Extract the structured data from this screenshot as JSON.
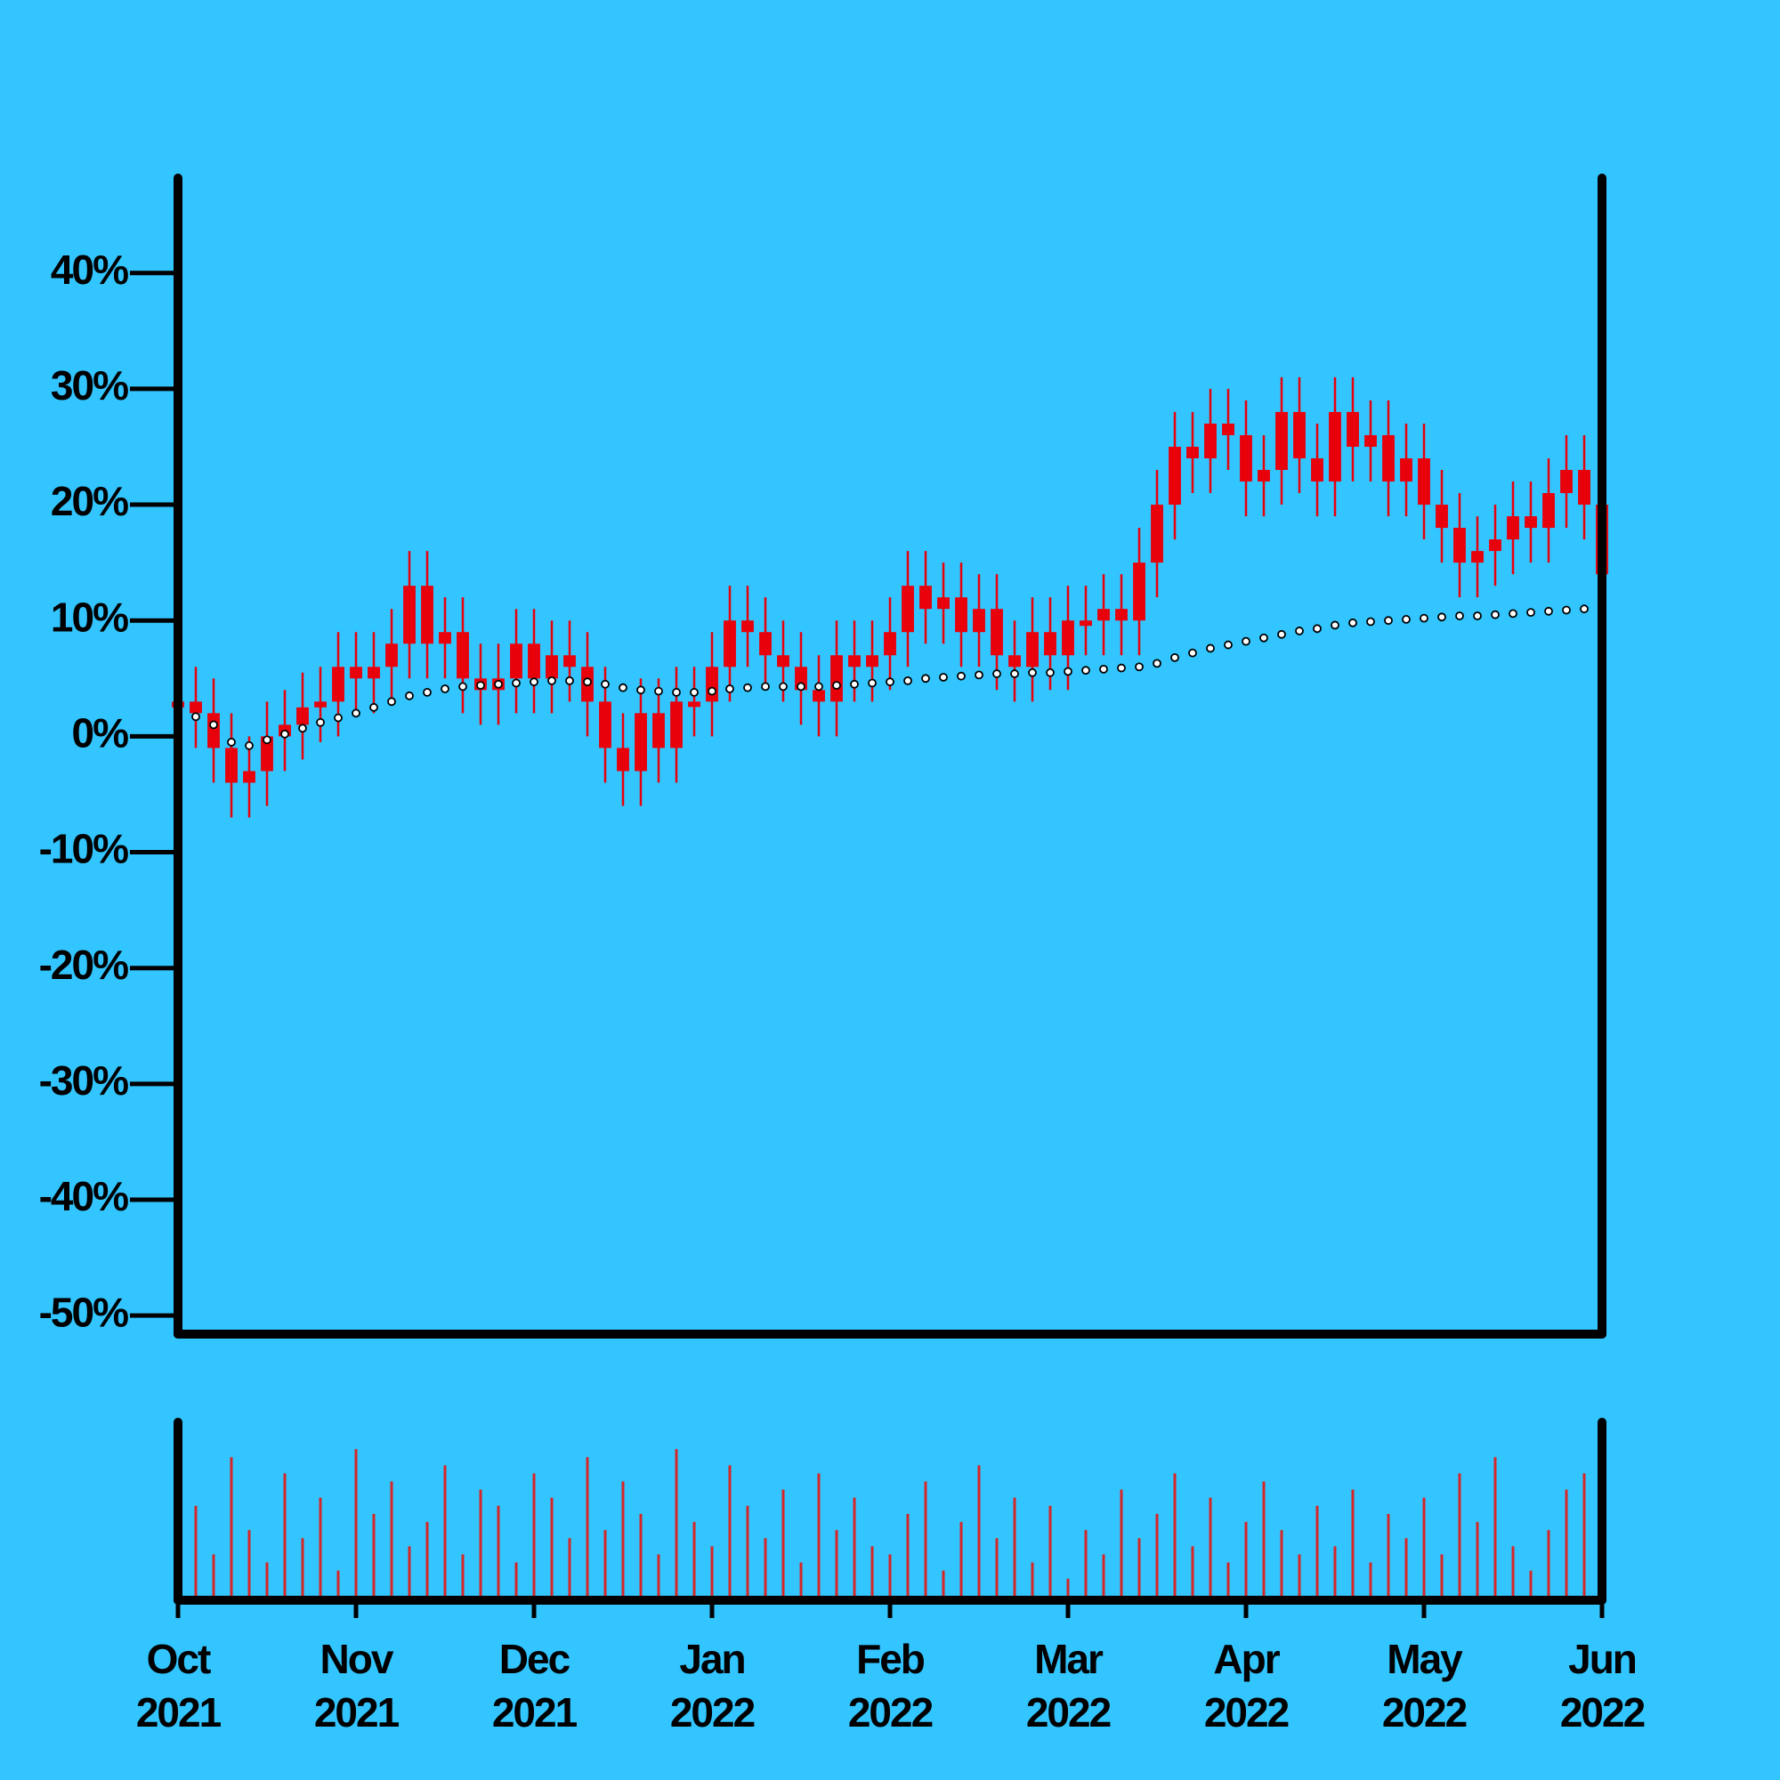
{
  "chart_data": {
    "type": "candlestick",
    "x": [
      0,
      0.1,
      0.2,
      0.3,
      0.4,
      0.5,
      0.6,
      0.7,
      0.8,
      0.9,
      1,
      1.1,
      1.2,
      1.3,
      1.4,
      1.5,
      1.6,
      1.7,
      1.8,
      1.9,
      2,
      2.1,
      2.2,
      2.3,
      2.4,
      2.5,
      2.6,
      2.7,
      2.8,
      2.9,
      3,
      3.1,
      3.2,
      3.3,
      3.4,
      3.5,
      3.6,
      3.7,
      3.8,
      3.9,
      4,
      4.1,
      4.2,
      4.3,
      4.4,
      4.5,
      4.6,
      4.7,
      4.8,
      4.9,
      5,
      5.1,
      5.2,
      5.3,
      5.4,
      5.5,
      5.6,
      5.7,
      5.8,
      5.9,
      6,
      6.1,
      6.2,
      6.3,
      6.4,
      6.5,
      6.6,
      6.7,
      6.8,
      6.9,
      7,
      7.1,
      7.2,
      7.3,
      7.4,
      7.5,
      7.6,
      7.7,
      7.8,
      7.9,
      8
    ],
    "open": [
      2.5,
      3,
      2,
      -1,
      -4,
      -3,
      0,
      1,
      2.5,
      3,
      6,
      5,
      6,
      8,
      13,
      8,
      9,
      5,
      4,
      5,
      8,
      5,
      7,
      6,
      3,
      -1,
      -3,
      2,
      -1,
      3,
      3,
      6,
      10,
      9,
      7,
      6,
      4,
      3,
      7,
      6,
      7,
      9,
      13,
      11,
      12,
      9,
      11,
      7,
      6,
      9,
      7,
      10,
      10,
      11,
      10,
      15,
      20,
      25,
      24,
      27,
      26,
      22,
      23,
      28,
      24,
      22,
      28,
      25,
      26,
      22,
      24,
      20,
      18,
      15,
      16,
      17,
      19,
      18,
      21,
      23,
      20
    ],
    "high": [
      6,
      6,
      5,
      2,
      0,
      3,
      4,
      5.5,
      6,
      9,
      9,
      9,
      11,
      16,
      16,
      12,
      12,
      8,
      8,
      11,
      11,
      10,
      10,
      9,
      6,
      2,
      5,
      5,
      6,
      6,
      9,
      13,
      13,
      12,
      10,
      9,
      7,
      10,
      10,
      10,
      12,
      16,
      16,
      15,
      15,
      14,
      14,
      10,
      12,
      12,
      13,
      13,
      14,
      14,
      18,
      23,
      28,
      28,
      30,
      30,
      29,
      26,
      31,
      31,
      27,
      31,
      31,
      29,
      29,
      27,
      27,
      23,
      21,
      19,
      20,
      22,
      22,
      24,
      26,
      26,
      23
    ],
    "low": [
      -0.5,
      -1,
      -4,
      -7,
      -7,
      -6,
      -3,
      -2,
      -0.5,
      0,
      2,
      2,
      3,
      5,
      5,
      5,
      2,
      1,
      1,
      2,
      2,
      2,
      3,
      0,
      -4,
      -6,
      -6,
      -4,
      -4,
      0,
      0,
      3,
      6,
      4,
      3,
      1,
      0,
      0,
      3,
      3,
      4,
      6,
      8,
      8,
      6,
      6,
      4,
      3,
      3,
      4,
      4,
      7,
      7,
      7,
      7,
      12,
      17,
      21,
      21,
      23,
      19,
      19,
      20,
      21,
      19,
      19,
      22,
      22,
      19,
      19,
      17,
      15,
      12,
      12,
      13,
      14,
      15,
      15,
      18,
      17,
      11
    ],
    "close": [
      3,
      2,
      -1,
      -4,
      -3,
      0,
      1,
      2.5,
      3,
      6,
      5,
      6,
      8,
      13,
      8,
      9,
      5,
      4,
      5,
      8,
      5,
      7,
      6,
      3,
      -1,
      -3,
      2,
      -1,
      3,
      3,
      6,
      10,
      9,
      7,
      6,
      4,
      3,
      7,
      6,
      7,
      9,
      13,
      11,
      12,
      9,
      11,
      7,
      6,
      9,
      7,
      10,
      10,
      11,
      10,
      15,
      20,
      25,
      24,
      27,
      26,
      22,
      23,
      28,
      24,
      22,
      28,
      25,
      26,
      22,
      24,
      20,
      18,
      15,
      16,
      17,
      19,
      18,
      21,
      23,
      20,
      14
    ],
    "moving_average": [
      2,
      1.7,
      1,
      -0.5,
      -0.8,
      -0.3,
      0.2,
      0.7,
      1.2,
      1.6,
      2,
      2.5,
      3,
      3.5,
      3.8,
      4.1,
      4.3,
      4.4,
      4.5,
      4.6,
      4.7,
      4.8,
      4.8,
      4.7,
      4.5,
      4.2,
      4,
      3.9,
      3.8,
      3.8,
      3.9,
      4.1,
      4.2,
      4.3,
      4.3,
      4.3,
      4.3,
      4.4,
      4.5,
      4.6,
      4.7,
      4.8,
      5,
      5.1,
      5.2,
      5.3,
      5.4,
      5.4,
      5.5,
      5.5,
      5.6,
      5.7,
      5.8,
      5.9,
      6,
      6.3,
      6.8,
      7.2,
      7.6,
      7.9,
      8.2,
      8.5,
      8.8,
      9.1,
      9.3,
      9.6,
      9.8,
      9.9,
      10,
      10.1,
      10.2,
      10.3,
      10.4,
      10.4,
      10.5,
      10.6,
      10.7,
      10.8,
      10.9,
      11,
      11
    ],
    "volume": [
      30,
      55,
      25,
      85,
      40,
      20,
      75,
      35,
      60,
      15,
      90,
      50,
      70,
      30,
      45,
      80,
      25,
      65,
      55,
      20,
      75,
      60,
      35,
      85,
      40,
      70,
      50,
      25,
      90,
      45,
      30,
      80,
      55,
      35,
      65,
      20,
      75,
      40,
      60,
      30,
      25,
      50,
      70,
      15,
      45,
      80,
      35,
      60,
      20,
      55,
      10,
      40,
      25,
      65,
      35,
      50,
      75,
      30,
      60,
      20,
      45,
      70,
      40,
      25,
      55,
      30,
      65,
      20,
      50,
      35,
      60,
      25,
      75,
      45,
      85,
      30,
      15,
      40,
      65,
      75,
      45
    ],
    "color": "#e8000b",
    "ma_color": "#000000",
    "ma_fill": "#ffffff",
    "volume_color": "#d62728",
    "xlim": [
      0,
      8
    ],
    "xticks": [
      {
        "value": 0,
        "label": "Oct 2021"
      },
      {
        "value": 1,
        "label": "Nov 2021"
      },
      {
        "value": 2,
        "label": "Dec 2021"
      },
      {
        "value": 3,
        "label": "Jan 2022"
      },
      {
        "value": 4,
        "label": "Feb 2022"
      },
      {
        "value": 5,
        "label": "Mar 2022"
      },
      {
        "value": 6,
        "label": "Apr 2022"
      },
      {
        "value": 7,
        "label": "May 2022"
      },
      {
        "value": 8,
        "label": "Jun 2022"
      }
    ],
    "ylim": [
      -51.6,
      48.2
    ],
    "yticks": [
      {
        "value": 40,
        "label": "40%"
      },
      {
        "value": 30,
        "label": "30%"
      },
      {
        "value": 20,
        "label": "20%"
      },
      {
        "value": 10,
        "label": "10%"
      },
      {
        "value": 0,
        "label": "0%"
      },
      {
        "value": -10,
        "label": "-10%"
      },
      {
        "value": -20,
        "label": "-20%"
      },
      {
        "value": -30,
        "label": "-30%"
      },
      {
        "value": -40,
        "label": "-40%"
      },
      {
        "value": -50,
        "label": "-50%"
      }
    ],
    "volume_lim": [
      0,
      100
    ]
  }
}
